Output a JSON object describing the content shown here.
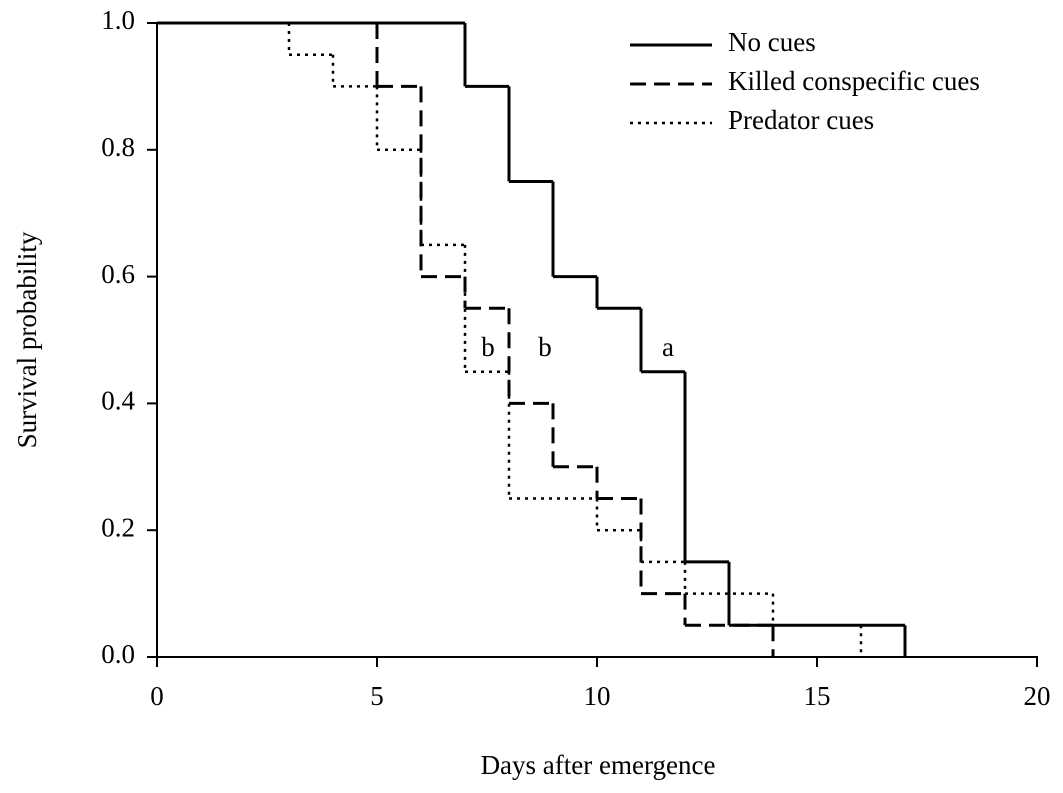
{
  "chart_data": {
    "type": "step",
    "xlabel": "Days after emergence",
    "ylabel": "Survival probability",
    "xlim": [
      0,
      20
    ],
    "xticks": [
      0,
      5,
      10,
      15,
      20
    ],
    "ylim": [
      0,
      1
    ],
    "yticks": [
      {
        "value": 0,
        "label": "0.0"
      },
      {
        "value": 0.2,
        "label": "0.2"
      },
      {
        "value": 0.4,
        "label": "0.4"
      },
      {
        "value": 0.6,
        "label": "0.6"
      },
      {
        "value": 0.8,
        "label": "0.8"
      },
      {
        "value": 1,
        "label": "1.0"
      }
    ],
    "legend": "top-right",
    "annotations": [
      "b",
      "b",
      "a"
    ],
    "series": [
      {
        "name": "No cues",
        "color": "#000000",
        "linestyle": "solid",
        "x": [
          0,
          7,
          8,
          9,
          10,
          11,
          12,
          13,
          17
        ],
        "values": [
          1,
          0.9,
          0.75,
          0.6,
          0.55,
          0.45,
          0.15,
          0.05,
          0
        ]
      },
      {
        "name": "Killed conspecific cues",
        "color": "#000000",
        "linestyle": "dashed",
        "x": [
          0,
          5,
          6,
          7,
          8,
          9,
          10,
          11,
          12,
          14
        ],
        "values": [
          1,
          0.9,
          0.6,
          0.55,
          0.4,
          0.3,
          0.25,
          0.1,
          0.05,
          0
        ]
      },
      {
        "name": "Predator cues",
        "color": "#000000",
        "linestyle": "dotted",
        "x": [
          0,
          3,
          4,
          5,
          6,
          7,
          8,
          10,
          11,
          12,
          14,
          16
        ],
        "values": [
          1,
          0.95,
          0.9,
          0.8,
          0.65,
          0.45,
          0.25,
          0.2,
          0.15,
          0.1,
          0.05,
          0
        ]
      }
    ]
  }
}
